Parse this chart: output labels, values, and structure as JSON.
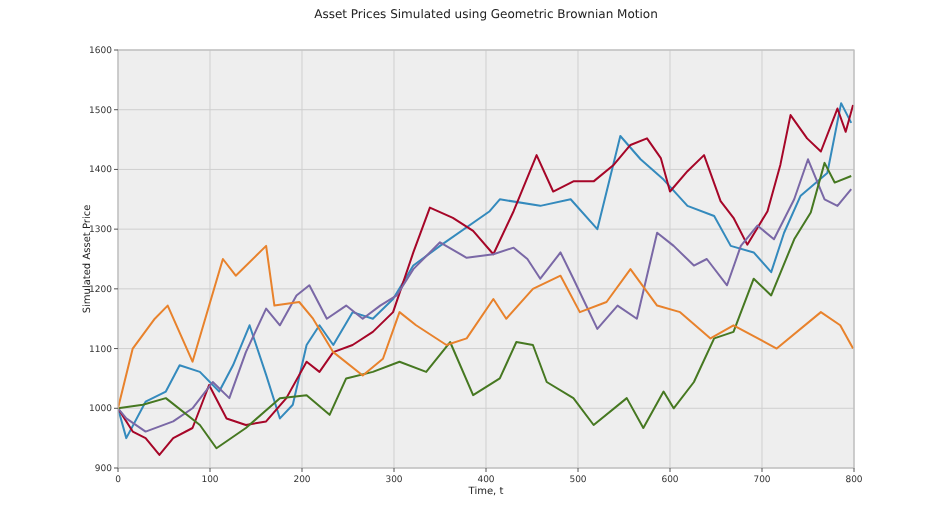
{
  "chart_data": {
    "type": "line",
    "title": "Asset Prices Simulated using Geometric Brownian Motion",
    "xlabel": "Time, t",
    "ylabel": "Simulated Asset Price",
    "xlim": [
      0,
      800
    ],
    "xticks": [
      0,
      100,
      200,
      300,
      400,
      500,
      600,
      700,
      800
    ],
    "ylim": [
      900,
      1600
    ],
    "yticks": [
      900,
      1000,
      1100,
      1200,
      1300,
      1400,
      1500,
      1600
    ],
    "grid": true,
    "series": [
      {
        "color": "#348abd",
        "x": [
          0,
          9,
          30,
          52,
          67,
          89,
          110,
          125,
          143,
          161,
          176,
          190,
          205,
          219,
          234,
          255,
          277,
          299,
          321,
          350,
          404,
          415,
          459,
          492,
          521,
          546,
          568,
          593,
          619,
          648,
          666,
          691,
          710,
          724,
          742,
          771,
          786,
          797
        ],
        "values": [
          1000,
          950,
          1011,
          1028,
          1072,
          1061,
          1028,
          1072,
          1139,
          1056,
          983,
          1006,
          1106,
          1139,
          1106,
          1161,
          1150,
          1183,
          1239,
          1272,
          1330,
          1350,
          1339,
          1350,
          1300,
          1456,
          1417,
          1383,
          1339,
          1322,
          1272,
          1261,
          1228,
          1294,
          1356,
          1394,
          1511,
          1478
        ]
      },
      {
        "color": "#a60628",
        "x": [
          0,
          16,
          30,
          45,
          60,
          81,
          99,
          118,
          139,
          161,
          183,
          205,
          219,
          234,
          255,
          277,
          299,
          321,
          339,
          364,
          386,
          408,
          430,
          455,
          473,
          495,
          517,
          539,
          557,
          575,
          590,
          600,
          619,
          637,
          655,
          669,
          684,
          706,
          720,
          731,
          749,
          764,
          782,
          791,
          799
        ],
        "values": [
          1000,
          961,
          950,
          922,
          950,
          967,
          1039,
          983,
          972,
          978,
          1017,
          1078,
          1061,
          1094,
          1106,
          1128,
          1161,
          1261,
          1336,
          1319,
          1297,
          1258,
          1330,
          1424,
          1363,
          1380,
          1380,
          1408,
          1441,
          1452,
          1419,
          1363,
          1397,
          1424,
          1347,
          1319,
          1274,
          1330,
          1408,
          1491,
          1452,
          1430,
          1502,
          1463,
          1508
        ]
      },
      {
        "color": "#7a68a6",
        "x": [
          0,
          9,
          30,
          60,
          81,
          103,
          121,
          139,
          161,
          176,
          194,
          208,
          227,
          248,
          266,
          285,
          303,
          321,
          350,
          379,
          408,
          430,
          445,
          459,
          481,
          495,
          521,
          543,
          564,
          586,
          604,
          626,
          640,
          662,
          677,
          695,
          713,
          735,
          750,
          768,
          782,
          797
        ],
        "values": [
          1000,
          983,
          961,
          978,
          1000,
          1044,
          1017,
          1094,
          1167,
          1139,
          1189,
          1206,
          1150,
          1172,
          1150,
          1172,
          1189,
          1233,
          1278,
          1252,
          1258,
          1269,
          1250,
          1217,
          1261,
          1217,
          1133,
          1172,
          1150,
          1294,
          1272,
          1239,
          1250,
          1206,
          1272,
          1306,
          1283,
          1350,
          1417,
          1350,
          1339,
          1367
        ]
      },
      {
        "color": "#467821",
        "x": [
          0,
          27,
          52,
          89,
          107,
          139,
          176,
          205,
          230,
          248,
          277,
          306,
          335,
          361,
          386,
          415,
          433,
          451,
          466,
          495,
          517,
          553,
          571,
          593,
          604,
          626,
          648,
          669,
          691,
          710,
          735,
          753,
          768,
          779,
          797
        ],
        "values": [
          1000,
          1006,
          1017,
          972,
          933,
          967,
          1017,
          1022,
          989,
          1050,
          1061,
          1078,
          1061,
          1111,
          1022,
          1050,
          1111,
          1106,
          1044,
          1017,
          972,
          1017,
          967,
          1028,
          1000,
          1044,
          1117,
          1128,
          1217,
          1189,
          1283,
          1328,
          1411,
          1378,
          1389
        ]
      },
      {
        "color": "#e8822c",
        "x": [
          0,
          16,
          40,
          54,
          81,
          114,
          128,
          161,
          170,
          197,
          212,
          234,
          266,
          288,
          306,
          324,
          357,
          379,
          408,
          422,
          451,
          481,
          502,
          531,
          557,
          586,
          611,
          644,
          669,
          716,
          764,
          785,
          799
        ],
        "values": [
          1000,
          1100,
          1150,
          1172,
          1078,
          1250,
          1222,
          1272,
          1172,
          1178,
          1150,
          1094,
          1055,
          1083,
          1161,
          1139,
          1106,
          1117,
          1183,
          1150,
          1200,
          1222,
          1161,
          1178,
          1233,
          1172,
          1161,
          1117,
          1139,
          1100,
          1161,
          1139,
          1100
        ]
      }
    ]
  }
}
